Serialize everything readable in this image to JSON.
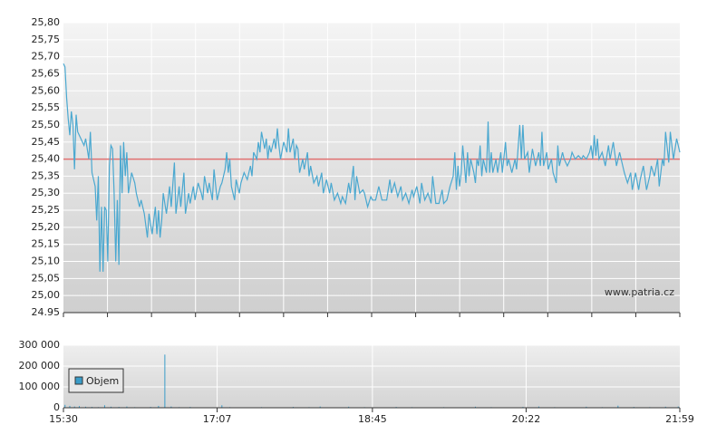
{
  "chart_data": [
    {
      "type": "line",
      "color": "#4aa8d0",
      "grid": true,
      "annotation": "www.patria.cz",
      "reference_line": {
        "value": 25.4,
        "color": "#e07070"
      },
      "xlim": [
        930,
        1319
      ],
      "ylim": [
        24.95,
        25.8
      ],
      "yticks": [
        {
          "value": 25.8,
          "label": "25,80"
        },
        {
          "value": 25.75,
          "label": "25,75"
        },
        {
          "value": 25.7,
          "label": "25,70"
        },
        {
          "value": 25.65,
          "label": "25,65"
        },
        {
          "value": 25.6,
          "label": "25,60"
        },
        {
          "value": 25.55,
          "label": "25,55"
        },
        {
          "value": 25.5,
          "label": "25,50"
        },
        {
          "value": 25.45,
          "label": "25,45"
        },
        {
          "value": 25.4,
          "label": "25,40"
        },
        {
          "value": 25.35,
          "label": "25,35"
        },
        {
          "value": 25.3,
          "label": "25,30"
        },
        {
          "value": 25.25,
          "label": "25,25"
        },
        {
          "value": 25.2,
          "label": "25,20"
        },
        {
          "value": 25.15,
          "label": "25,15"
        },
        {
          "value": 25.1,
          "label": "25,10"
        },
        {
          "value": 25.05,
          "label": "25,05"
        },
        {
          "value": 25.0,
          "label": "25,00"
        },
        {
          "value": 24.95,
          "label": "24.95"
        }
      ],
      "x": [
        930,
        931,
        932,
        933,
        934,
        935,
        936,
        937,
        938,
        939,
        941,
        943,
        944,
        946,
        947,
        948,
        950,
        951,
        952,
        953,
        954,
        955,
        956,
        957,
        958,
        959,
        960,
        961,
        962,
        963,
        964,
        965,
        966,
        967,
        968,
        969,
        970,
        971,
        973,
        975,
        976,
        978,
        979,
        981,
        983,
        984,
        986,
        987,
        988,
        989,
        990,
        991,
        992,
        993,
        995,
        997,
        998,
        1000,
        1001,
        1003,
        1004,
        1006,
        1007,
        1009,
        1010,
        1012,
        1013,
        1015,
        1017,
        1018,
        1019,
        1021,
        1022,
        1024,
        1025,
        1027,
        1029,
        1030,
        1032,
        1033,
        1034,
        1035,
        1036,
        1038,
        1039,
        1041,
        1042,
        1044,
        1046,
        1048,
        1049,
        1050,
        1052,
        1053,
        1054,
        1055,
        1057,
        1058,
        1059,
        1060,
        1061,
        1063,
        1064,
        1065,
        1066,
        1067,
        1069,
        1071,
        1072,
        1073,
        1075,
        1076,
        1077,
        1078,
        1079,
        1081,
        1082,
        1084,
        1085,
        1086,
        1088,
        1090,
        1091,
        1093,
        1094,
        1096,
        1098,
        1099,
        1101,
        1103,
        1105,
        1106,
        1108,
        1110,
        1111,
        1113,
        1114,
        1115,
        1117,
        1119,
        1120,
        1122,
        1124,
        1125,
        1127,
        1129,
        1131,
        1132,
        1134,
        1136,
        1137,
        1139,
        1141,
        1143,
        1144,
        1146,
        1148,
        1150,
        1151,
        1153,
        1155,
        1156,
        1158,
        1160,
        1162,
        1163,
        1165,
        1167,
        1169,
        1170,
        1172,
        1174,
        1176,
        1177,
        1178,
        1179,
        1180,
        1181,
        1182,
        1184,
        1185,
        1186,
        1187,
        1189,
        1190,
        1191,
        1192,
        1193,
        1194,
        1195,
        1197,
        1198,
        1199,
        1200,
        1201,
        1203,
        1204,
        1206,
        1207,
        1209,
        1210,
        1211,
        1213,
        1215,
        1216,
        1218,
        1219,
        1220,
        1221,
        1223,
        1224,
        1226,
        1228,
        1230,
        1231,
        1232,
        1233,
        1235,
        1236,
        1238,
        1239,
        1241,
        1242,
        1243,
        1245,
        1246,
        1248,
        1250,
        1251,
        1253,
        1255,
        1257,
        1258,
        1260,
        1262,
        1263,
        1264,
        1265,
        1266,
        1267,
        1268,
        1270,
        1272,
        1274,
        1275,
        1277,
        1279,
        1281,
        1282,
        1284,
        1286,
        1288,
        1289,
        1291,
        1293,
        1294,
        1296,
        1298,
        1300,
        1301,
        1303,
        1305,
        1306,
        1308,
        1309,
        1310,
        1312,
        1313,
        1315,
        1317,
        1319
      ],
      "values": [
        25.68,
        25.67,
        25.58,
        25.52,
        25.47,
        25.54,
        25.5,
        25.37,
        25.53,
        25.48,
        25.46,
        25.44,
        25.46,
        25.4,
        25.48,
        25.36,
        25.32,
        25.22,
        25.35,
        25.07,
        25.26,
        25.07,
        25.26,
        25.25,
        25.1,
        25.38,
        25.44,
        25.43,
        25.3,
        25.1,
        25.28,
        25.09,
        25.44,
        25.3,
        25.45,
        25.35,
        25.42,
        25.3,
        25.36,
        25.33,
        25.3,
        25.26,
        25.28,
        25.24,
        25.17,
        25.24,
        25.18,
        25.22,
        25.26,
        25.18,
        25.25,
        25.17,
        25.22,
        25.3,
        25.24,
        25.32,
        25.26,
        25.39,
        25.24,
        25.32,
        25.26,
        25.36,
        25.24,
        25.3,
        25.27,
        25.32,
        25.28,
        25.33,
        25.3,
        25.28,
        25.35,
        25.3,
        25.33,
        25.28,
        25.37,
        25.28,
        25.32,
        25.33,
        25.37,
        25.42,
        25.36,
        25.4,
        25.32,
        25.28,
        25.34,
        25.3,
        25.33,
        25.36,
        25.34,
        25.38,
        25.35,
        25.42,
        25.4,
        25.45,
        25.42,
        25.48,
        25.43,
        25.46,
        25.4,
        25.44,
        25.42,
        25.46,
        25.43,
        25.49,
        25.44,
        25.4,
        25.45,
        25.42,
        25.49,
        25.42,
        25.46,
        25.4,
        25.44,
        25.43,
        25.36,
        25.4,
        25.37,
        25.42,
        25.35,
        25.38,
        25.33,
        25.35,
        25.32,
        25.36,
        25.3,
        25.34,
        25.3,
        25.33,
        25.28,
        25.3,
        25.27,
        25.29,
        25.27,
        25.33,
        25.3,
        25.38,
        25.28,
        25.35,
        25.3,
        25.31,
        25.3,
        25.26,
        25.29,
        25.28,
        25.28,
        25.32,
        25.28,
        25.28,
        25.28,
        25.34,
        25.3,
        25.33,
        25.29,
        25.32,
        25.28,
        25.3,
        25.27,
        25.31,
        25.29,
        25.32,
        25.27,
        25.33,
        25.28,
        25.3,
        25.27,
        25.35,
        25.27,
        25.27,
        25.31,
        25.27,
        25.28,
        25.32,
        25.35,
        25.42,
        25.31,
        25.38,
        25.32,
        25.36,
        25.44,
        25.33,
        25.42,
        25.35,
        25.4,
        25.36,
        25.33,
        25.4,
        25.38,
        25.44,
        25.35,
        25.4,
        25.36,
        25.51,
        25.36,
        25.42,
        25.36,
        25.4,
        25.36,
        25.42,
        25.36,
        25.45,
        25.38,
        25.4,
        25.36,
        25.4,
        25.37,
        25.5,
        25.4,
        25.5,
        25.4,
        25.42,
        25.36,
        25.43,
        25.38,
        25.42,
        25.38,
        25.48,
        25.38,
        25.42,
        25.37,
        25.4,
        25.36,
        25.33,
        25.44,
        25.38,
        25.42,
        25.4,
        25.38,
        25.4,
        25.42,
        25.4,
        25.41,
        25.4,
        25.41,
        25.4,
        25.42,
        25.44,
        25.4,
        25.47,
        25.41,
        25.46,
        25.4,
        25.42,
        25.38,
        25.44,
        25.4,
        25.45,
        25.38,
        25.42,
        25.4,
        25.36,
        25.33,
        25.36,
        25.31,
        25.36,
        25.31,
        25.34,
        25.38,
        25.31,
        25.35,
        25.38,
        25.35,
        25.4,
        25.32,
        25.4,
        25.38,
        25.48,
        25.39,
        25.48,
        25.4,
        25.46,
        25.42
      ]
    },
    {
      "type": "bar",
      "grid": true,
      "legend": "bottom-left",
      "xlim": [
        930,
        1319
      ],
      "ylim": [
        0,
        300000
      ],
      "yticks": [
        0,
        {
          "value": 100000,
          "label": "100 000"
        },
        {
          "value": 200000,
          "label": "200 000"
        },
        {
          "value": 300000,
          "label": "300 000"
        }
      ],
      "xticks": [
        {
          "value": 930,
          "label": "15:30"
        },
        {
          "value": 1027,
          "label": "17:07"
        },
        {
          "value": 1125,
          "label": "18:45"
        },
        {
          "value": 1222,
          "label": "20:22"
        },
        {
          "value": 1319,
          "label": "21:59"
        }
      ],
      "x": [
        931,
        934,
        937,
        940,
        944,
        948,
        952,
        956,
        960,
        965,
        970,
        975,
        980,
        985,
        990,
        994,
        998,
        1003,
        1010,
        1020,
        1030,
        1035,
        1045,
        1055,
        1065,
        1075,
        1085,
        1092,
        1100,
        1110,
        1120,
        1130,
        1140,
        1150,
        1160,
        1170,
        1180,
        1190,
        1200,
        1210,
        1220,
        1230,
        1240,
        1250,
        1260,
        1270,
        1280,
        1290,
        1300,
        1310,
        1318
      ],
      "series": [
        {
          "name": "Objem",
          "color": "#3a9cc8",
          "values": [
            14000,
            9000,
            6000,
            8000,
            5000,
            4000,
            3000,
            12000,
            5000,
            4000,
            6000,
            3000,
            2000,
            4000,
            9000,
            255000,
            6000,
            3000,
            4000,
            2000,
            12000,
            3000,
            2000,
            3000,
            2000,
            4000,
            3000,
            6000,
            2000,
            5000,
            3000,
            2000,
            4000,
            3000,
            2000,
            3000,
            2000,
            5000,
            3000,
            2000,
            4000,
            6000,
            3000,
            2000,
            5000,
            3000,
            10000,
            4000,
            3000,
            5000,
            6000
          ]
        }
      ]
    }
  ]
}
